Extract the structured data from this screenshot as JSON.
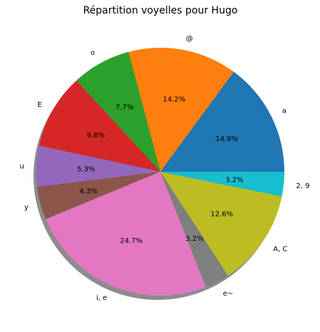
{
  "chart_data": {
    "type": "pie",
    "title": "Répartition voyelles pour Hugo",
    "labels": [
      "a",
      "@",
      "o",
      "E",
      "u",
      "y",
      "i, e",
      "e~",
      "A, C",
      "2, 9"
    ],
    "values": [
      14.9,
      14.2,
      7.7,
      9.8,
      5.3,
      4.3,
      24.7,
      3.2,
      12.6,
      3.2
    ],
    "value_labels": [
      "14.9%",
      "14.2%",
      "7.7%",
      "9.8%",
      "5.3%",
      "4.3%",
      "24.7%",
      "3.2%",
      "12.6%",
      "3.2%"
    ],
    "colors": [
      "#1f77b4",
      "#ff7f0e",
      "#2ca02c",
      "#d62728",
      "#9467bd",
      "#8c564b",
      "#e377c2",
      "#7f7f7f",
      "#bcbd22",
      "#17becf"
    ],
    "start_angle_deg": 0,
    "direction": "counterclockwise",
    "shadow": true,
    "legend": "none"
  }
}
